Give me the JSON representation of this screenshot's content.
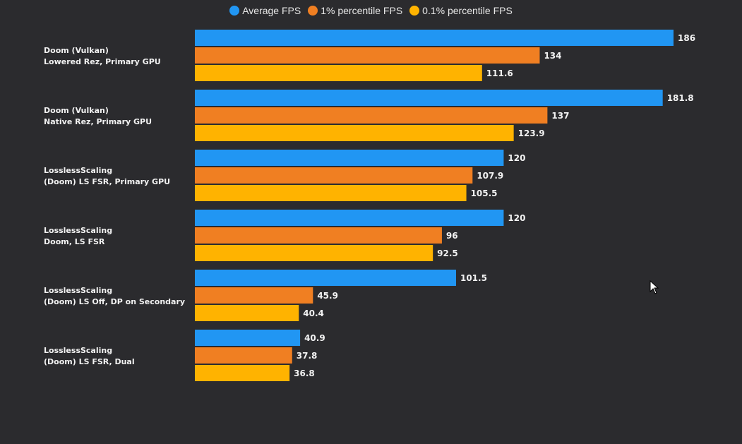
{
  "chart_data": {
    "type": "bar",
    "orientation": "horizontal",
    "xlim": [
      0,
      186
    ],
    "legend_position": "top-center",
    "categories": [
      [
        "Doom (Vulkan)",
        "Lowered Rez, Primary GPU"
      ],
      [
        "Doom (Vulkan)",
        "Native Rez, Primary GPU"
      ],
      [
        "LosslessScaling",
        "(Doom) LS FSR, Primary GPU"
      ],
      [
        "LosslessScaling",
        "Doom, LS FSR"
      ],
      [
        "LosslessScaling",
        "(Doom) LS Off, DP on Secondary"
      ],
      [
        "LosslessScaling",
        "(Doom) LS FSR, Dual"
      ]
    ],
    "series": [
      {
        "name": "Average FPS",
        "color": "#2196f3",
        "values": [
          186,
          181.8,
          120,
          120,
          101.5,
          40.9
        ]
      },
      {
        "name": "1% percentile FPS",
        "color": "#f07f22",
        "values": [
          134,
          137,
          107.9,
          96,
          45.9,
          37.8
        ]
      },
      {
        "name": "0.1% percentile FPS",
        "color": "#ffb300",
        "values": [
          111.6,
          123.9,
          105.5,
          92.5,
          40.4,
          36.8
        ]
      }
    ]
  }
}
